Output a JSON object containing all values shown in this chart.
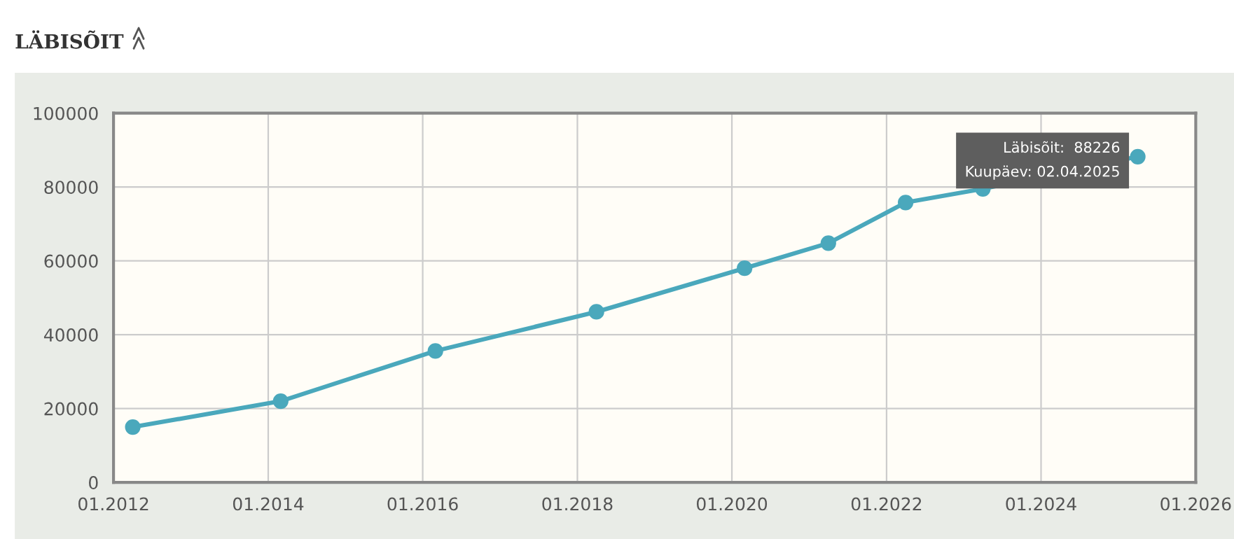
{
  "chart_data": {
    "type": "line",
    "title": "LÄBISÕIT",
    "x": [
      "2012-04",
      "2014-03",
      "2016-03",
      "2018-04",
      "2020-03",
      "2021-04",
      "2022-04",
      "2023-04",
      "2025-04-02"
    ],
    "series": [
      {
        "color": "#4aa8bc",
        "values": [
          15000,
          22000,
          35600,
          46200,
          58000,
          64800,
          75800,
          79500,
          88226
        ]
      }
    ],
    "xlim": [
      "2012-01",
      "2026-01"
    ],
    "xticks": [
      {
        "value": "2012-01",
        "label": "01.2012"
      },
      {
        "value": "2014-01",
        "label": "01.2014"
      },
      {
        "value": "2016-01",
        "label": "01.2016"
      },
      {
        "value": "2018-01",
        "label": "01.2018"
      },
      {
        "value": "2020-01",
        "label": "01.2020"
      },
      {
        "value": "2022-01",
        "label": "01.2022"
      },
      {
        "value": "2024-01",
        "label": "01.2024"
      },
      {
        "value": "2026-01",
        "label": "01.2026"
      }
    ],
    "ylim": [
      0,
      100000
    ],
    "yticks": [
      0,
      20000,
      40000,
      60000,
      80000,
      100000
    ],
    "grid": true,
    "legend": false,
    "marker": "circle",
    "line_style": "solid",
    "annotations": [
      {
        "text": "Läbisõit:  88226\nKuupäev: 02.04.2025",
        "x": "2025-04-02",
        "y": 88226
      }
    ]
  }
}
